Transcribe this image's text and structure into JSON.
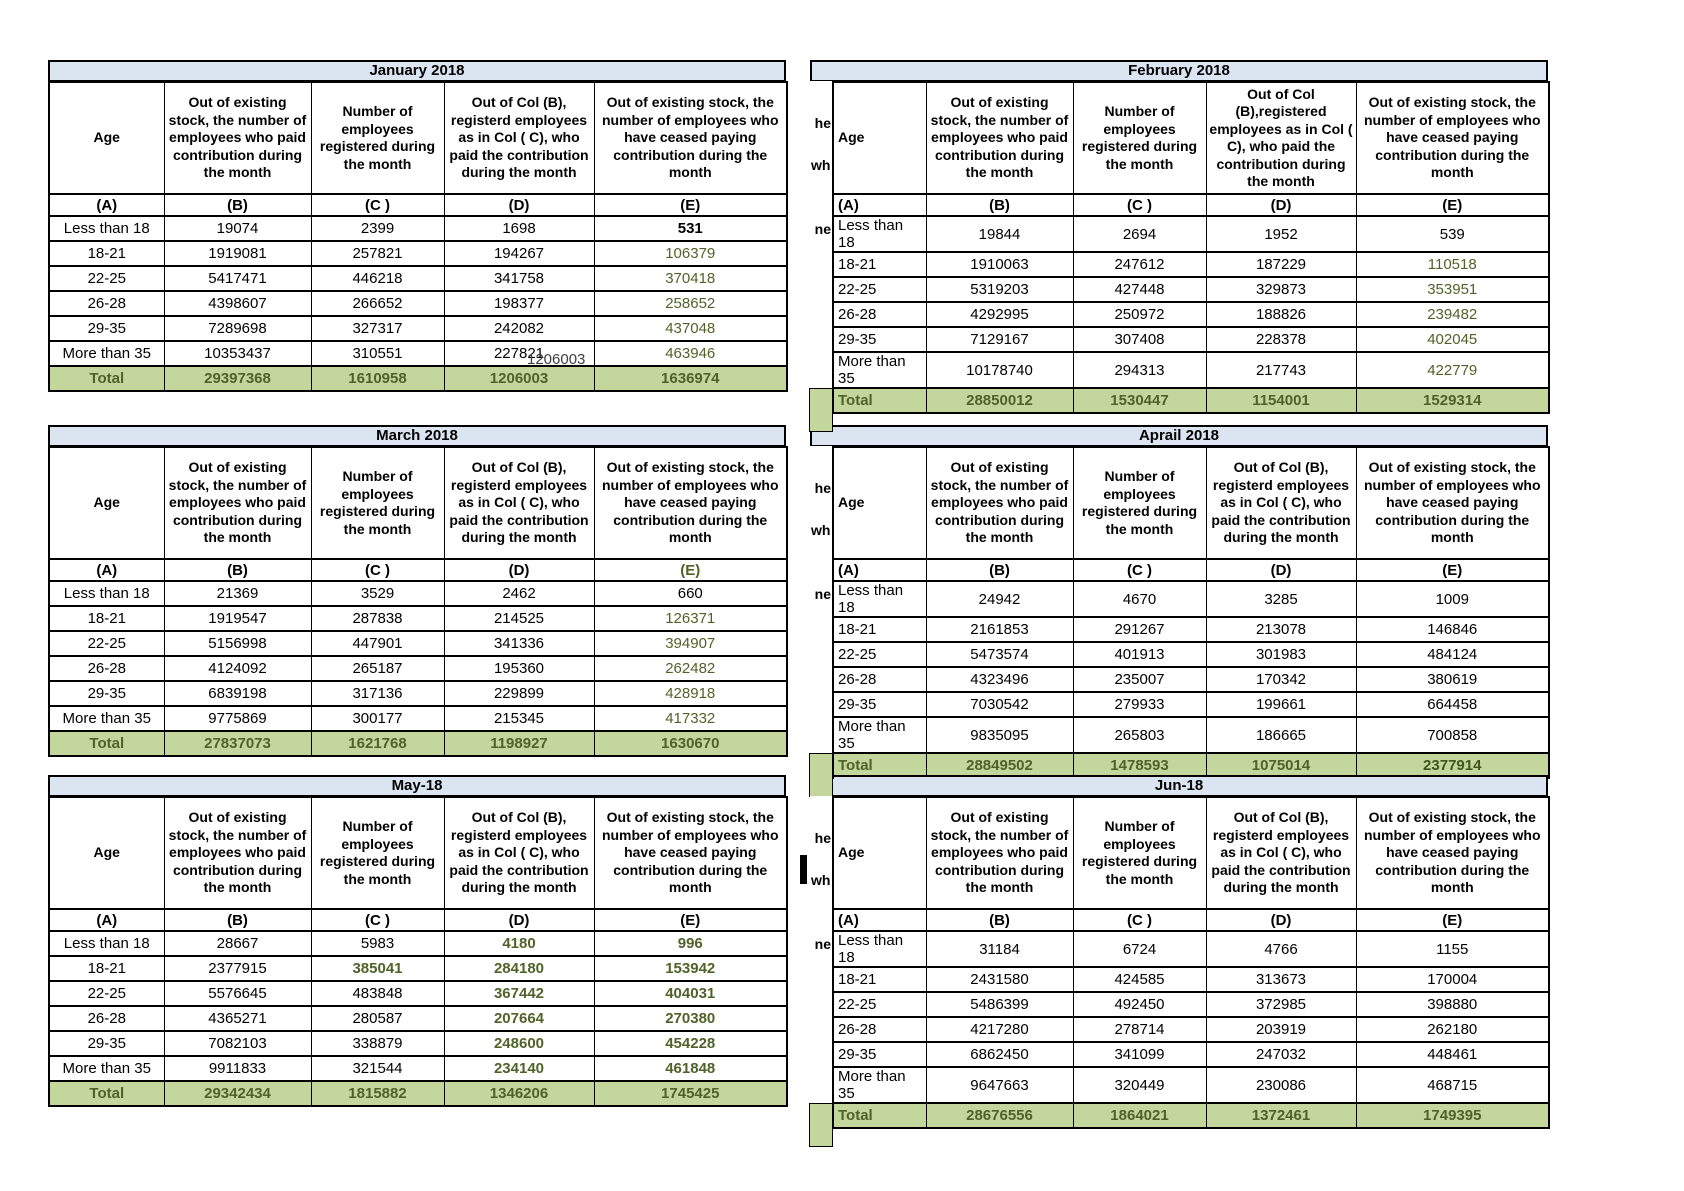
{
  "colors": {
    "title_bg": "#dbe5f1",
    "total_bg": "#c3d69b",
    "green_text": "#4f6228",
    "black_text": "#000000"
  },
  "column_letters": [
    "(A)",
    "(B)",
    "(C )",
    "(D)",
    "(E)"
  ],
  "months": [
    {
      "title": "January 2018",
      "side": "left",
      "letters_e_green": false,
      "headers": {
        "a": "Age",
        "b": "Out of existing stock, the number of employees who paid contribution during the month",
        "c": "Number of employees registered during the month",
        "d": "Out of Col (B), registerd employees as in Col ( C), who paid the contribution during the month",
        "e": "Out of existing stock, the number of  employees  who have ceased paying contribution during the month"
      },
      "rows": [
        {
          "age": "Less than 18",
          "cells": [
            [
              "19074",
              "k"
            ],
            [
              "2399",
              "k"
            ],
            [
              "1698",
              "k"
            ],
            [
              "531",
              "kb"
            ]
          ]
        },
        {
          "age": "18-21",
          "cells": [
            [
              "1919081",
              "k"
            ],
            [
              "257821",
              "k"
            ],
            [
              "194267",
              "k"
            ],
            [
              "106379",
              "g"
            ]
          ]
        },
        {
          "age": "22-25",
          "cells": [
            [
              "5417471",
              "k"
            ],
            [
              "446218",
              "k"
            ],
            [
              "341758",
              "k"
            ],
            [
              "370418",
              "g"
            ]
          ]
        },
        {
          "age": "26-28",
          "cells": [
            [
              "4398607",
              "k"
            ],
            [
              "266652",
              "k"
            ],
            [
              "198377",
              "k"
            ],
            [
              "258652",
              "g"
            ]
          ]
        },
        {
          "age": "29-35",
          "cells": [
            [
              "7289698",
              "k"
            ],
            [
              "327317",
              "k"
            ],
            [
              "242082",
              "k"
            ],
            [
              "437048",
              "g"
            ]
          ]
        },
        {
          "age": "More than 35",
          "cells": [
            [
              "10353437",
              "k"
            ],
            [
              "310551",
              "k"
            ],
            [
              "227821",
              "k"
            ],
            [
              "463946",
              "g"
            ]
          ]
        }
      ],
      "total": {
        "label": "Total",
        "cells": [
          [
            "29397368",
            "t"
          ],
          [
            "1610958",
            "t"
          ],
          [
            "1206003",
            "t"
          ],
          [
            "1636974",
            "t"
          ]
        ]
      },
      "artifact_text": "1206003"
    },
    {
      "title": "February 2018",
      "side": "right",
      "letters_e_green": false,
      "headers": {
        "a": "Age",
        "b": "Out of existing stock, the number of employees who paid contribution during the month",
        "c": "Number of employees registered during the month",
        "d": "Out of Col (B),registered employees as in Col ( C), who paid the contribution during the month",
        "e": "Out of existing stock, the number of employees  who have ceased paying contribution during the month"
      },
      "rows": [
        {
          "age": "Less than 18",
          "cells": [
            [
              "19844",
              "k"
            ],
            [
              "2694",
              "k"
            ],
            [
              "1952",
              "k"
            ],
            [
              "539",
              "k"
            ]
          ]
        },
        {
          "age": "18-21",
          "cells": [
            [
              "1910063",
              "k"
            ],
            [
              "247612",
              "k"
            ],
            [
              "187229",
              "k"
            ],
            [
              "110518",
              "g"
            ]
          ]
        },
        {
          "age": "22-25",
          "cells": [
            [
              "5319203",
              "k"
            ],
            [
              "427448",
              "k"
            ],
            [
              "329873",
              "k"
            ],
            [
              "353951",
              "g"
            ]
          ]
        },
        {
          "age": "26-28",
          "cells": [
            [
              "4292995",
              "k"
            ],
            [
              "250972",
              "k"
            ],
            [
              "188826",
              "k"
            ],
            [
              "239482",
              "g"
            ]
          ]
        },
        {
          "age": "29-35",
          "cells": [
            [
              "7129167",
              "k"
            ],
            [
              "307408",
              "k"
            ],
            [
              "228378",
              "k"
            ],
            [
              "402045",
              "g"
            ]
          ]
        },
        {
          "age": "More than 35",
          "cells": [
            [
              "10178740",
              "k"
            ],
            [
              "294313",
              "k"
            ],
            [
              "217743",
              "k"
            ],
            [
              "422779",
              "g"
            ]
          ]
        }
      ],
      "total": {
        "label": "Total",
        "cells": [
          [
            "28850012",
            "t"
          ],
          [
            "1530447",
            "t"
          ],
          [
            "1154001",
            "t"
          ],
          [
            "1529314",
            "t"
          ]
        ]
      },
      "sliver_fragments": [
        "he",
        "who",
        "ne"
      ]
    },
    {
      "title": "March 2018",
      "side": "left",
      "letters_e_green": true,
      "headers": {
        "a": "Age",
        "b": "Out of existing stock, the number of employees who paid contribution during the month",
        "c": "Number of employees registered during the month",
        "d": "Out of Col (B), registerd employees as in Col ( C), who paid the contribution during the month",
        "e": "Out of existing stock, the number of  employees  who have ceased paying contribution during the month"
      },
      "rows": [
        {
          "age": "Less than 18",
          "cells": [
            [
              "21369",
              "k"
            ],
            [
              "3529",
              "k"
            ],
            [
              "2462",
              "k"
            ],
            [
              "660",
              "k"
            ]
          ]
        },
        {
          "age": "18-21",
          "cells": [
            [
              "1919547",
              "k"
            ],
            [
              "287838",
              "k"
            ],
            [
              "214525",
              "k"
            ],
            [
              "126371",
              "g"
            ]
          ]
        },
        {
          "age": "22-25",
          "cells": [
            [
              "5156998",
              "k"
            ],
            [
              "447901",
              "k"
            ],
            [
              "341336",
              "k"
            ],
            [
              "394907",
              "g"
            ]
          ]
        },
        {
          "age": "26-28",
          "cells": [
            [
              "4124092",
              "k"
            ],
            [
              "265187",
              "k"
            ],
            [
              "195360",
              "k"
            ],
            [
              "262482",
              "g"
            ]
          ]
        },
        {
          "age": "29-35",
          "cells": [
            [
              "6839198",
              "k"
            ],
            [
              "317136",
              "k"
            ],
            [
              "229899",
              "k"
            ],
            [
              "428918",
              "g"
            ]
          ]
        },
        {
          "age": "More than 35",
          "cells": [
            [
              "9775869",
              "k"
            ],
            [
              "300177",
              "k"
            ],
            [
              "215345",
              "k"
            ],
            [
              "417332",
              "g"
            ]
          ]
        }
      ],
      "total": {
        "label": "Total",
        "cells": [
          [
            "27837073",
            "t"
          ],
          [
            "1621768",
            "t"
          ],
          [
            "1198927",
            "t"
          ],
          [
            "1630670",
            "t"
          ]
        ]
      }
    },
    {
      "title": "Aprail 2018",
      "side": "right",
      "letters_e_green": false,
      "headers": {
        "a": "Age",
        "b": "Out of existing stock, the number of employees who paid contribution during the month",
        "c": "Number of employees registered during the month",
        "d": "Out of Col (B), registerd employees as in Col ( C), who paid the contribution during the month",
        "e": "Out of existing stock, the number of employees  who have ceased paying contribution during the month"
      },
      "rows": [
        {
          "age": "Less than 18",
          "cells": [
            [
              "24942",
              "k"
            ],
            [
              "4670",
              "k"
            ],
            [
              "3285",
              "k"
            ],
            [
              "1009",
              "k"
            ]
          ]
        },
        {
          "age": "18-21",
          "cells": [
            [
              "2161853",
              "k"
            ],
            [
              "291267",
              "k"
            ],
            [
              "213078",
              "k"
            ],
            [
              "146846",
              "k"
            ]
          ]
        },
        {
          "age": "22-25",
          "cells": [
            [
              "5473574",
              "k"
            ],
            [
              "401913",
              "k"
            ],
            [
              "301983",
              "k"
            ],
            [
              "484124",
              "k"
            ]
          ]
        },
        {
          "age": "26-28",
          "cells": [
            [
              "4323496",
              "k"
            ],
            [
              "235007",
              "k"
            ],
            [
              "170342",
              "k"
            ],
            [
              "380619",
              "k"
            ]
          ]
        },
        {
          "age": "29-35",
          "cells": [
            [
              "7030542",
              "k"
            ],
            [
              "279933",
              "k"
            ],
            [
              "199661",
              "k"
            ],
            [
              "664458",
              "k"
            ]
          ]
        },
        {
          "age": "More than 35",
          "cells": [
            [
              "9835095",
              "k"
            ],
            [
              "265803",
              "k"
            ],
            [
              "186665",
              "k"
            ],
            [
              "700858",
              "k"
            ]
          ]
        }
      ],
      "total": {
        "label": "Total",
        "cells": [
          [
            "28849502",
            "t"
          ],
          [
            "1478593",
            "t"
          ],
          [
            "1075014",
            "t"
          ],
          [
            "2377914",
            "tb"
          ]
        ]
      },
      "sliver_fragments": [
        "he",
        "who",
        "ne"
      ]
    },
    {
      "title": "May-18",
      "side": "left",
      "letters_e_green": false,
      "headers": {
        "a": "Age",
        "b": "Out of existing stock, the number of employees who paid contribution during the month",
        "c": "Number of employees registered during the month",
        "d": "Out of Col (B), registerd employees as in Col ( C), who paid the contribution during the month",
        "e": "Out of existing stock, the number of  employees  who have ceased paying contribution during the month"
      },
      "rows": [
        {
          "age": "Less than 18",
          "cells": [
            [
              "28667",
              "k"
            ],
            [
              "5983",
              "k"
            ],
            [
              "4180",
              "gb"
            ],
            [
              "996",
              "gb"
            ]
          ]
        },
        {
          "age": "18-21",
          "cells": [
            [
              "2377915",
              "k"
            ],
            [
              "385041",
              "gb"
            ],
            [
              "284180",
              "gb"
            ],
            [
              "153942",
              "gb"
            ]
          ]
        },
        {
          "age": "22-25",
          "cells": [
            [
              "5576645",
              "k"
            ],
            [
              "483848",
              "k"
            ],
            [
              "367442",
              "gb"
            ],
            [
              "404031",
              "gb"
            ]
          ]
        },
        {
          "age": "26-28",
          "cells": [
            [
              "4365271",
              "k"
            ],
            [
              "280587",
              "k"
            ],
            [
              "207664",
              "gb"
            ],
            [
              "270380",
              "gb"
            ]
          ]
        },
        {
          "age": "29-35",
          "cells": [
            [
              "7082103",
              "k"
            ],
            [
              "338879",
              "k"
            ],
            [
              "248600",
              "gb"
            ],
            [
              "454228",
              "gb"
            ]
          ]
        },
        {
          "age": "More than 35",
          "cells": [
            [
              "9911833",
              "k"
            ],
            [
              "321544",
              "k"
            ],
            [
              "234140",
              "gb"
            ],
            [
              "461848",
              "gb"
            ]
          ]
        }
      ],
      "total": {
        "label": "Total",
        "cells": [
          [
            "29342434",
            "t"
          ],
          [
            "1815882",
            "t"
          ],
          [
            "1346206",
            "t"
          ],
          [
            "1745425",
            "t"
          ]
        ]
      }
    },
    {
      "title": "Jun-18",
      "side": "right",
      "letters_e_green": false,
      "has_black_mark": true,
      "headers": {
        "a": "Age",
        "b": "Out of existing stock, the number of employees who paid contribution during the month",
        "c": "Number of employees registered during the month",
        "d": "Out of Col (B), registerd employees as in Col ( C), who paid the contribution during the month",
        "e": "Out of existing stock, the number of employees  who have ceased paying contribution during the month"
      },
      "rows": [
        {
          "age": "Less than 18",
          "cells": [
            [
              "31184",
              "k"
            ],
            [
              "6724",
              "k"
            ],
            [
              "4766",
              "k"
            ],
            [
              "1155",
              "k"
            ]
          ]
        },
        {
          "age": "18-21",
          "cells": [
            [
              "2431580",
              "k"
            ],
            [
              "424585",
              "k"
            ],
            [
              "313673",
              "k"
            ],
            [
              "170004",
              "k"
            ]
          ]
        },
        {
          "age": "22-25",
          "cells": [
            [
              "5486399",
              "k"
            ],
            [
              "492450",
              "k"
            ],
            [
              "372985",
              "k"
            ],
            [
              "398880",
              "k"
            ]
          ]
        },
        {
          "age": "26-28",
          "cells": [
            [
              "4217280",
              "k"
            ],
            [
              "278714",
              "k"
            ],
            [
              "203919",
              "k"
            ],
            [
              "262180",
              "k"
            ]
          ]
        },
        {
          "age": "29-35",
          "cells": [
            [
              "6862450",
              "k"
            ],
            [
              "341099",
              "k"
            ],
            [
              "247032",
              "k"
            ],
            [
              "448461",
              "k"
            ]
          ]
        },
        {
          "age": "More than 35",
          "cells": [
            [
              "9647663",
              "k"
            ],
            [
              "320449",
              "k"
            ],
            [
              "230086",
              "k"
            ],
            [
              "468715",
              "k"
            ]
          ]
        }
      ],
      "total": {
        "label": "Total",
        "cells": [
          [
            "28676556",
            "t"
          ],
          [
            "1864021",
            "t"
          ],
          [
            "1372461",
            "t"
          ],
          [
            "1749395",
            "t"
          ]
        ]
      },
      "sliver_fragments": [
        "he",
        "who",
        "ne"
      ]
    }
  ]
}
